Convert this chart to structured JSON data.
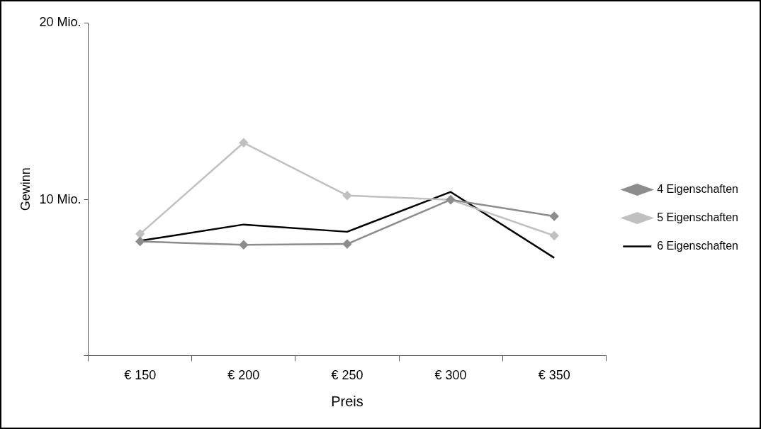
{
  "chart_data": {
    "type": "line",
    "xlabel": "Preis",
    "ylabel": "Gewinn",
    "categories": [
      "€ 150",
      "€ 200",
      "€ 250",
      "€ 300",
      "€ 350"
    ],
    "ylim": [
      1.2,
      20
    ],
    "yticks": [
      {
        "value": 1.2,
        "label": null
      },
      {
        "value": 10,
        "label": "10 Mio."
      },
      {
        "value": 20,
        "label": "20 Mio."
      }
    ],
    "series": [
      {
        "name": "4 Eigenschaften",
        "color": "#8c8c8c",
        "marker": "diamond",
        "values": [
          7.64,
          7.45,
          7.5,
          10.0,
          9.07
        ]
      },
      {
        "name": "5 Eigenschaften",
        "color": "#c0c0c0",
        "marker": "diamond",
        "values": [
          8.07,
          13.22,
          10.24,
          10.0,
          7.97
        ]
      },
      {
        "name": "6 Eigenschaften",
        "color": "#000000",
        "marker": "none",
        "values": [
          7.68,
          8.6,
          8.19,
          10.44,
          6.72
        ]
      }
    ],
    "grid": false,
    "legend": "right"
  }
}
